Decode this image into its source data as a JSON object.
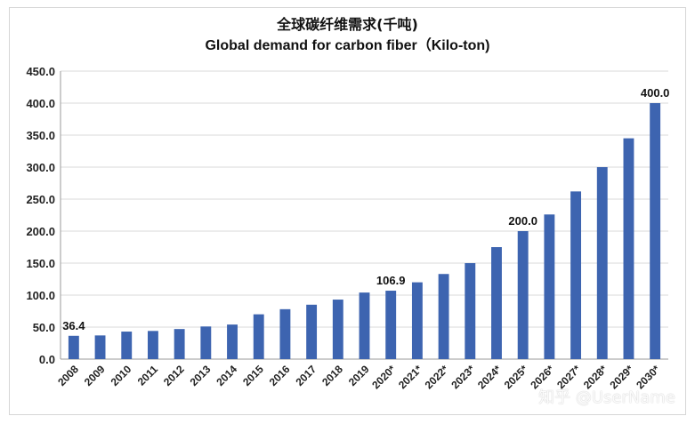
{
  "chart_data": {
    "type": "bar",
    "title": "全球碳纤维需求(千吨)",
    "subtitle": "Global demand for carbon fiber（Kilo-ton)",
    "xlabel": "",
    "ylabel": "",
    "ylim": [
      0,
      450
    ],
    "yticks": [
      "0.0",
      "50.0",
      "100.0",
      "150.0",
      "200.0",
      "250.0",
      "300.0",
      "350.0",
      "400.0",
      "450.0"
    ],
    "grid": true,
    "categories": [
      "2008",
      "2009",
      "2010",
      "2011",
      "2012",
      "2013",
      "2014",
      "2015",
      "2016",
      "2017",
      "2018",
      "2019",
      "2020*",
      "2021*",
      "2022*",
      "2023*",
      "2024*",
      "2025*",
      "2026*",
      "2027*",
      "2028*",
      "2029*",
      "2030*"
    ],
    "series": [
      {
        "values": [
          36.4,
          37,
          43,
          44,
          47,
          51,
          54,
          70,
          78,
          85,
          93,
          104,
          106.9,
          120,
          133,
          150,
          175,
          200.0,
          226,
          262,
          300,
          345,
          400.0
        ],
        "color": "#3d64b0"
      }
    ],
    "data_labels": [
      {
        "index": 0,
        "text": "36.4"
      },
      {
        "index": 12,
        "text": "106.9"
      },
      {
        "index": 17,
        "text": "200.0"
      },
      {
        "index": 22,
        "text": "400.0"
      }
    ]
  },
  "watermark": "知乎 @UserName"
}
